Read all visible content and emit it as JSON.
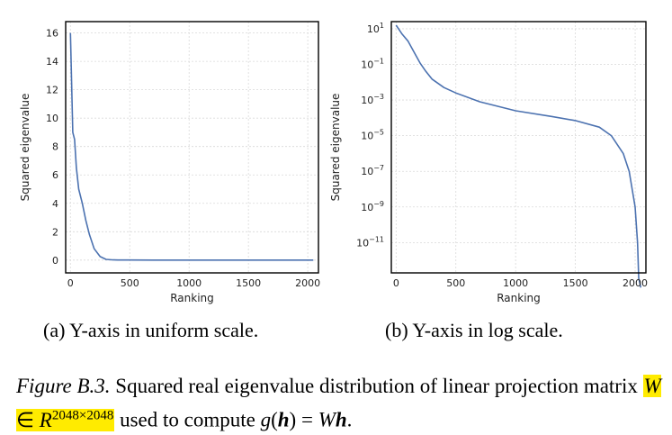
{
  "chart_data": [
    {
      "type": "line",
      "yscale": "linear",
      "xlabel": "Ranking",
      "ylabel": "Squared eigenvalue",
      "xlim": [
        -40,
        2090
      ],
      "ylim": [
        -0.9,
        16.8
      ],
      "xticks": [
        0,
        500,
        1000,
        1500,
        2000
      ],
      "xtick_labels": [
        "0",
        "500",
        "1000",
        "1500",
        "2000"
      ],
      "yticks": [
        0,
        2,
        4,
        6,
        8,
        10,
        12,
        14,
        16
      ],
      "ytick_labels": [
        "0",
        "2",
        "4",
        "6",
        "8",
        "10",
        "12",
        "14",
        "16"
      ],
      "grid": true,
      "color": "#4c72b0",
      "series": [
        {
          "x": [
            0,
            10,
            20,
            35,
            50,
            70,
            100,
            130,
            160,
            200,
            250,
            300,
            350,
            400,
            500,
            700,
            1000,
            1500,
            2047
          ],
          "values": [
            16,
            12.5,
            9,
            8.5,
            6.5,
            5,
            4,
            2.8,
            1.8,
            0.8,
            0.25,
            0.05,
            0.02,
            0.01,
            0.005,
            0.002,
            0.001,
            0.0005,
            0
          ]
        }
      ]
    },
    {
      "type": "line",
      "yscale": "log",
      "xlabel": "Ranking",
      "ylabel": "Squared eigenvalue",
      "xlim": [
        -40,
        2090
      ],
      "ylim_exp": [
        -12.7,
        1.4
      ],
      "xticks": [
        0,
        500,
        1000,
        1500,
        2000
      ],
      "xtick_labels": [
        "0",
        "500",
        "1000",
        "1500",
        "2000"
      ],
      "ytick_exponents": [
        1,
        -1,
        -3,
        -5,
        -7,
        -9,
        -11
      ],
      "ytick_base": "10",
      "ytick_superscripts": [
        "1",
        "−1",
        "−3",
        "−5",
        "−7",
        "−9",
        "−11"
      ],
      "grid": true,
      "color": "#4c72b0",
      "series": [
        {
          "x": [
            0,
            50,
            100,
            150,
            200,
            250,
            300,
            400,
            500,
            700,
            1000,
            1300,
            1500,
            1700,
            1800,
            1900,
            1950,
            2000,
            2020,
            2030,
            2040,
            2047
          ],
          "values": [
            16,
            5,
            2,
            0.5,
            0.12,
            0.04,
            0.015,
            0.005,
            0.0025,
            0.0008,
            0.00025,
            0.00012,
            7e-05,
            3e-05,
            1e-05,
            1e-06,
            1e-07,
            1e-09,
            1e-11,
            1e-13,
            5e-14,
            3e-14
          ]
        }
      ]
    }
  ],
  "captions": {
    "a": "(a) Y-axis in uniform scale.",
    "b": "(b) Y-axis in log scale."
  },
  "figure_caption": {
    "label": "Figure B.3.",
    "text_before": "Squared real eigenvalue distribution of linear projection matrix",
    "math_W": "W",
    "math_in": " ∈ ",
    "math_R": "R",
    "math_sup": "2048×2048",
    "text_after": "used to compute",
    "math_g": "g",
    "math_h": "h",
    "math_eq": ") = ",
    "math_W2": "W"
  }
}
